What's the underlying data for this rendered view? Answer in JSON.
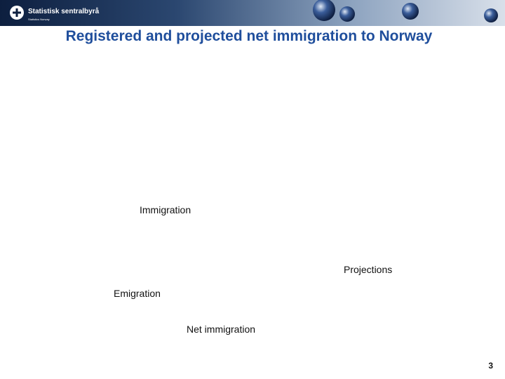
{
  "header": {
    "logo": "Statistisk sentralbyrå",
    "logo_subtitle": "Statistics Norway"
  },
  "title": "Registered and projected net immigration to Norway",
  "labels": [
    "Immigration",
    "Projections",
    "Emigration",
    "Net immigration"
  ],
  "page_number": "3"
}
